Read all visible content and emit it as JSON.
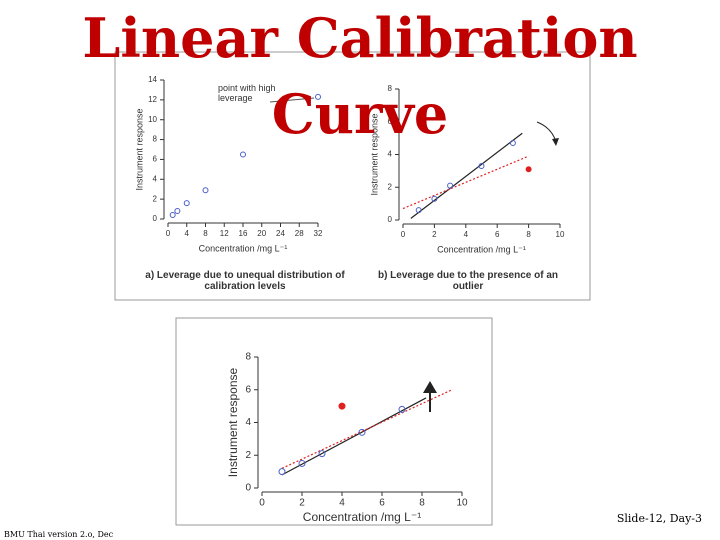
{
  "slide": {
    "title": "Linear Calibration Curve",
    "footer_right": "Slide-12, Day-3",
    "footer_left": "BMU Thai version 2.o, Dec"
  },
  "chart_data": [
    {
      "type": "scatter",
      "caption": "a) Leverage due to unequal distribution of calibration levels",
      "annotation": "point with high leverage",
      "x_label": "Concentration /mg L⁻¹",
      "y_label": "Instrument response",
      "xlim": [
        0,
        32
      ],
      "xticks": [
        0,
        4,
        8,
        12,
        16,
        20,
        24,
        28,
        32
      ],
      "ylim": [
        0,
        14
      ],
      "yticks": [
        0,
        2,
        4,
        6,
        8,
        10,
        12,
        14
      ],
      "series": [
        {
          "color": "#4a5fc8",
          "x": [
            1,
            2,
            4,
            8,
            16,
            32
          ],
          "values": [
            0.4,
            0.8,
            1.6,
            2.9,
            6.5,
            12.3
          ]
        }
      ],
      "lines": []
    },
    {
      "type": "scatter",
      "caption": "b) Leverage due to the presence of an outlier",
      "x_label": "Concentration /mg L⁻¹",
      "y_label": "Instrument response",
      "xlim": [
        0,
        10
      ],
      "xticks": [
        0,
        2,
        4,
        6,
        8,
        10
      ],
      "ylim": [
        0,
        8
      ],
      "yticks": [
        0,
        2,
        4,
        6,
        8
      ],
      "series": [
        {
          "color": "#4a5fc8",
          "x": [
            1,
            2,
            3,
            5,
            7
          ],
          "values": [
            0.6,
            1.3,
            2.1,
            3.3,
            4.7
          ]
        },
        {
          "color": "#e02020",
          "x": [
            8
          ],
          "values": [
            3.1
          ]
        }
      ],
      "lines": [
        {
          "color": "#222222",
          "dashed": false,
          "x": [
            0.5,
            7.6
          ],
          "values": [
            0.1,
            5.3
          ]
        },
        {
          "color": "#e02020",
          "dashed": true,
          "x": [
            0,
            8
          ],
          "values": [
            0.7,
            3.9
          ]
        }
      ]
    },
    {
      "type": "scatter",
      "x_label": "Concentration /mg L⁻¹",
      "y_label": "Instrument response",
      "xlim": [
        0,
        10
      ],
      "xticks": [
        0,
        2,
        4,
        6,
        8,
        10
      ],
      "ylim": [
        0,
        8
      ],
      "yticks": [
        0,
        2,
        4,
        6,
        8
      ],
      "series": [
        {
          "color": "#4a5fc8",
          "x": [
            1,
            2,
            3,
            5,
            7
          ],
          "values": [
            1,
            1.5,
            2.1,
            3.4,
            4.8
          ]
        },
        {
          "color": "#e02020",
          "x": [
            4
          ],
          "values": [
            5
          ]
        }
      ],
      "lines": [
        {
          "color": "#222222",
          "dashed": false,
          "x": [
            1,
            8.2
          ],
          "values": [
            0.8,
            5.5
          ]
        },
        {
          "color": "#e02020",
          "dashed": true,
          "x": [
            1,
            9.5
          ],
          "values": [
            1.2,
            6
          ]
        }
      ]
    }
  ]
}
